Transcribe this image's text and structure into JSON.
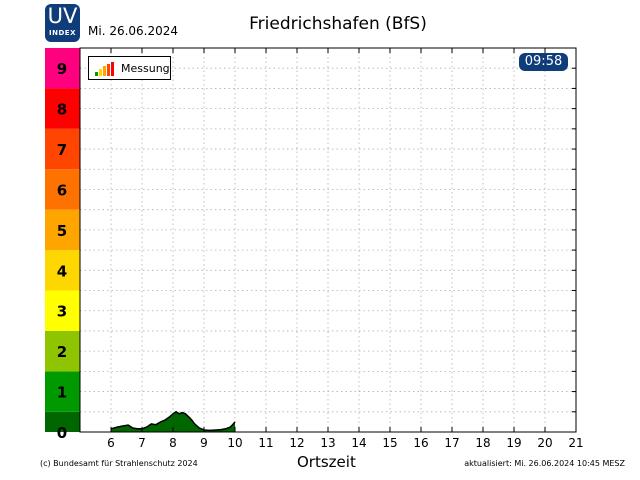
{
  "header": {
    "logo_main": "UV",
    "logo_sub": "INDEX",
    "date": "Mi. 26.06.2024",
    "title": "Friedrichshafen (BfS)",
    "time": "09:58"
  },
  "footer": {
    "copyright": "(c) Bundesamt für Strahlenschutz 2024",
    "updated": "aktualisiert: Mi. 26.06.2024  10:45  MESZ"
  },
  "legend": {
    "label": "Messung"
  },
  "colors": {
    "measurement_fill": "#006600",
    "logo_bg": "#0e3d7a",
    "uv_scale": [
      "#006600",
      "#009a00",
      "#8fc400",
      "#ffff00",
      "#ffd700",
      "#ffa500",
      "#ff7200",
      "#ff4500",
      "#ff0000",
      "#ff007f"
    ]
  },
  "chart_data": {
    "type": "area",
    "xlabel": "Ortszeit",
    "ylabel": "",
    "xlim": [
      5,
      21
    ],
    "ylim": [
      0,
      9.5
    ],
    "x_ticks": [
      "6",
      "7",
      "8",
      "9",
      "10",
      "11",
      "12",
      "13",
      "14",
      "15",
      "16",
      "17",
      "18",
      "19",
      "20",
      "21"
    ],
    "y_ticks": [
      "0",
      "1",
      "2",
      "3",
      "4",
      "5",
      "6",
      "7",
      "8",
      "9"
    ],
    "grid": true,
    "legend_position": "top-left",
    "series": [
      {
        "name": "Messung",
        "x": [
          6.0,
          6.2,
          6.4,
          6.55,
          6.7,
          6.85,
          7.0,
          7.15,
          7.3,
          7.45,
          7.6,
          7.75,
          7.9,
          8.0,
          8.1,
          8.2,
          8.3,
          8.4,
          8.5,
          8.6,
          8.7,
          8.85,
          9.0,
          9.2,
          9.4,
          9.55,
          9.7,
          9.85,
          9.95,
          10.0
        ],
        "y": [
          0.08,
          0.12,
          0.15,
          0.17,
          0.1,
          0.08,
          0.08,
          0.12,
          0.2,
          0.18,
          0.25,
          0.3,
          0.38,
          0.45,
          0.5,
          0.45,
          0.48,
          0.45,
          0.38,
          0.3,
          0.2,
          0.1,
          0.05,
          0.04,
          0.05,
          0.06,
          0.08,
          0.12,
          0.2,
          0.25
        ]
      }
    ]
  }
}
